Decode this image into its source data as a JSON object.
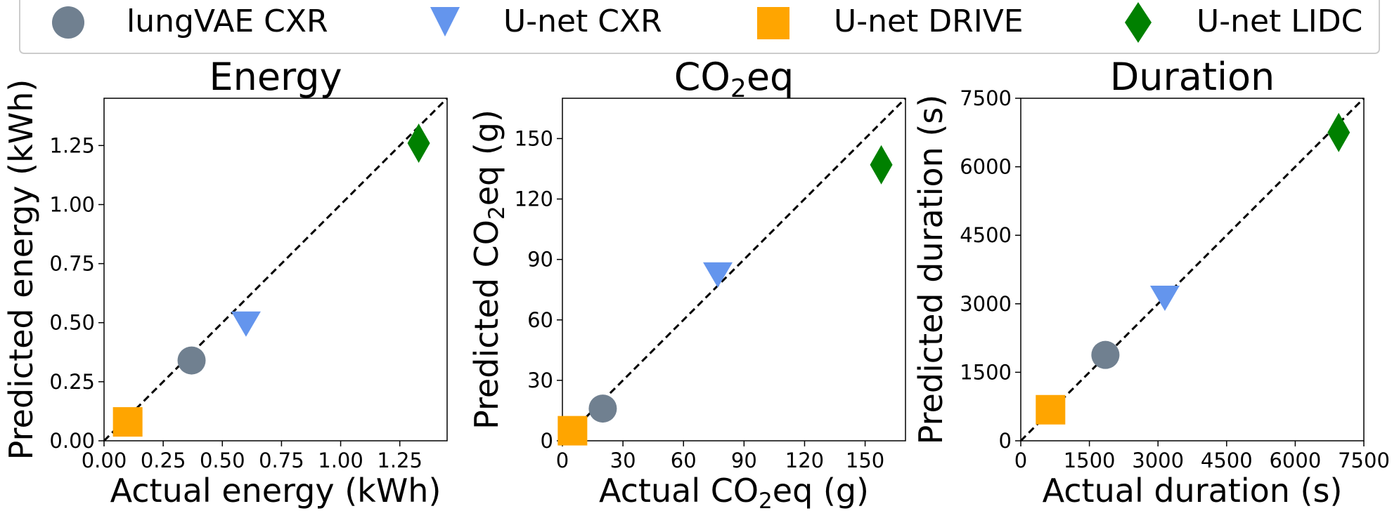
{
  "legend": {
    "placement": "top-center",
    "entries": [
      {
        "label": "lungVAE CXR",
        "marker": "circle",
        "color": "#708090"
      },
      {
        "label": "U-net CXR",
        "marker": "triangle-down",
        "color": "#6495ED"
      },
      {
        "label": "U-net DRIVE",
        "marker": "square",
        "color": "#FFA500"
      },
      {
        "label": "U-net LIDC",
        "marker": "diamond",
        "color": "#008000"
      }
    ]
  },
  "chart_data": [
    {
      "type": "scatter",
      "title": "Energy",
      "xlabel": "Actual energy (kWh)",
      "ylabel": "Predicted energy (kWh)",
      "xlim": [
        0,
        1.45
      ],
      "ylim": [
        0,
        1.45
      ],
      "xticks": [
        "0.00",
        "0.25",
        "0.50",
        "0.75",
        "1.00",
        "1.25"
      ],
      "xtick_values": [
        0,
        0.25,
        0.5,
        0.75,
        1.0,
        1.25
      ],
      "yticks": [
        "0.00",
        "0.25",
        "0.50",
        "0.75",
        "1.00",
        "1.25"
      ],
      "ytick_values": [
        0,
        0.25,
        0.5,
        0.75,
        1.0,
        1.25
      ],
      "identity_line": true,
      "points": [
        {
          "series": "lungVAE CXR",
          "x": 0.37,
          "y": 0.34
        },
        {
          "series": "U-net CXR",
          "x": 0.6,
          "y": 0.5
        },
        {
          "series": "U-net DRIVE",
          "x": 0.1,
          "y": 0.08
        },
        {
          "series": "U-net LIDC",
          "x": 1.33,
          "y": 1.26
        }
      ]
    },
    {
      "type": "scatter",
      "title": "CO",
      "title_sub": "2",
      "title_suffix": "eq",
      "xlabel": "Actual CO",
      "xlabel_sub": "2",
      "xlabel_suffix": "eq (g)",
      "ylabel": "Predicted CO",
      "ylabel_sub": "2",
      "ylabel_suffix": "eq (g)",
      "xlim": [
        0,
        170
      ],
      "ylim": [
        0,
        170
      ],
      "xticks": [
        "0",
        "30",
        "60",
        "90",
        "120",
        "150"
      ],
      "xtick_values": [
        0,
        30,
        60,
        90,
        120,
        150
      ],
      "yticks": [
        "0",
        "30",
        "60",
        "90",
        "120",
        "150"
      ],
      "ytick_values": [
        0,
        30,
        60,
        90,
        120,
        150
      ],
      "identity_line": true,
      "points": [
        {
          "series": "lungVAE CXR",
          "x": 20,
          "y": 16
        },
        {
          "series": "U-net CXR",
          "x": 77,
          "y": 83
        },
        {
          "series": "U-net DRIVE",
          "x": 5,
          "y": 5
        },
        {
          "series": "U-net LIDC",
          "x": 158,
          "y": 137
        }
      ]
    },
    {
      "type": "scatter",
      "title": "Duration",
      "xlabel": "Actual duration (s)",
      "ylabel": "Predicted duration (s)",
      "xlim": [
        0,
        7500
      ],
      "ylim": [
        0,
        7500
      ],
      "xticks": [
        "0",
        "1500",
        "3000",
        "4500",
        "6000",
        "7500"
      ],
      "xtick_values": [
        0,
        1500,
        3000,
        4500,
        6000,
        7500
      ],
      "yticks": [
        "0",
        "1500",
        "3000",
        "4500",
        "6000",
        "7500"
      ],
      "ytick_values": [
        0,
        1500,
        3000,
        4500,
        6000,
        7500
      ],
      "identity_line": true,
      "points": [
        {
          "series": "lungVAE CXR",
          "x": 1850,
          "y": 1880
        },
        {
          "series": "U-net CXR",
          "x": 3150,
          "y": 3150
        },
        {
          "series": "U-net DRIVE",
          "x": 650,
          "y": 680
        },
        {
          "series": "U-net LIDC",
          "x": 6950,
          "y": 6750
        }
      ]
    }
  ]
}
